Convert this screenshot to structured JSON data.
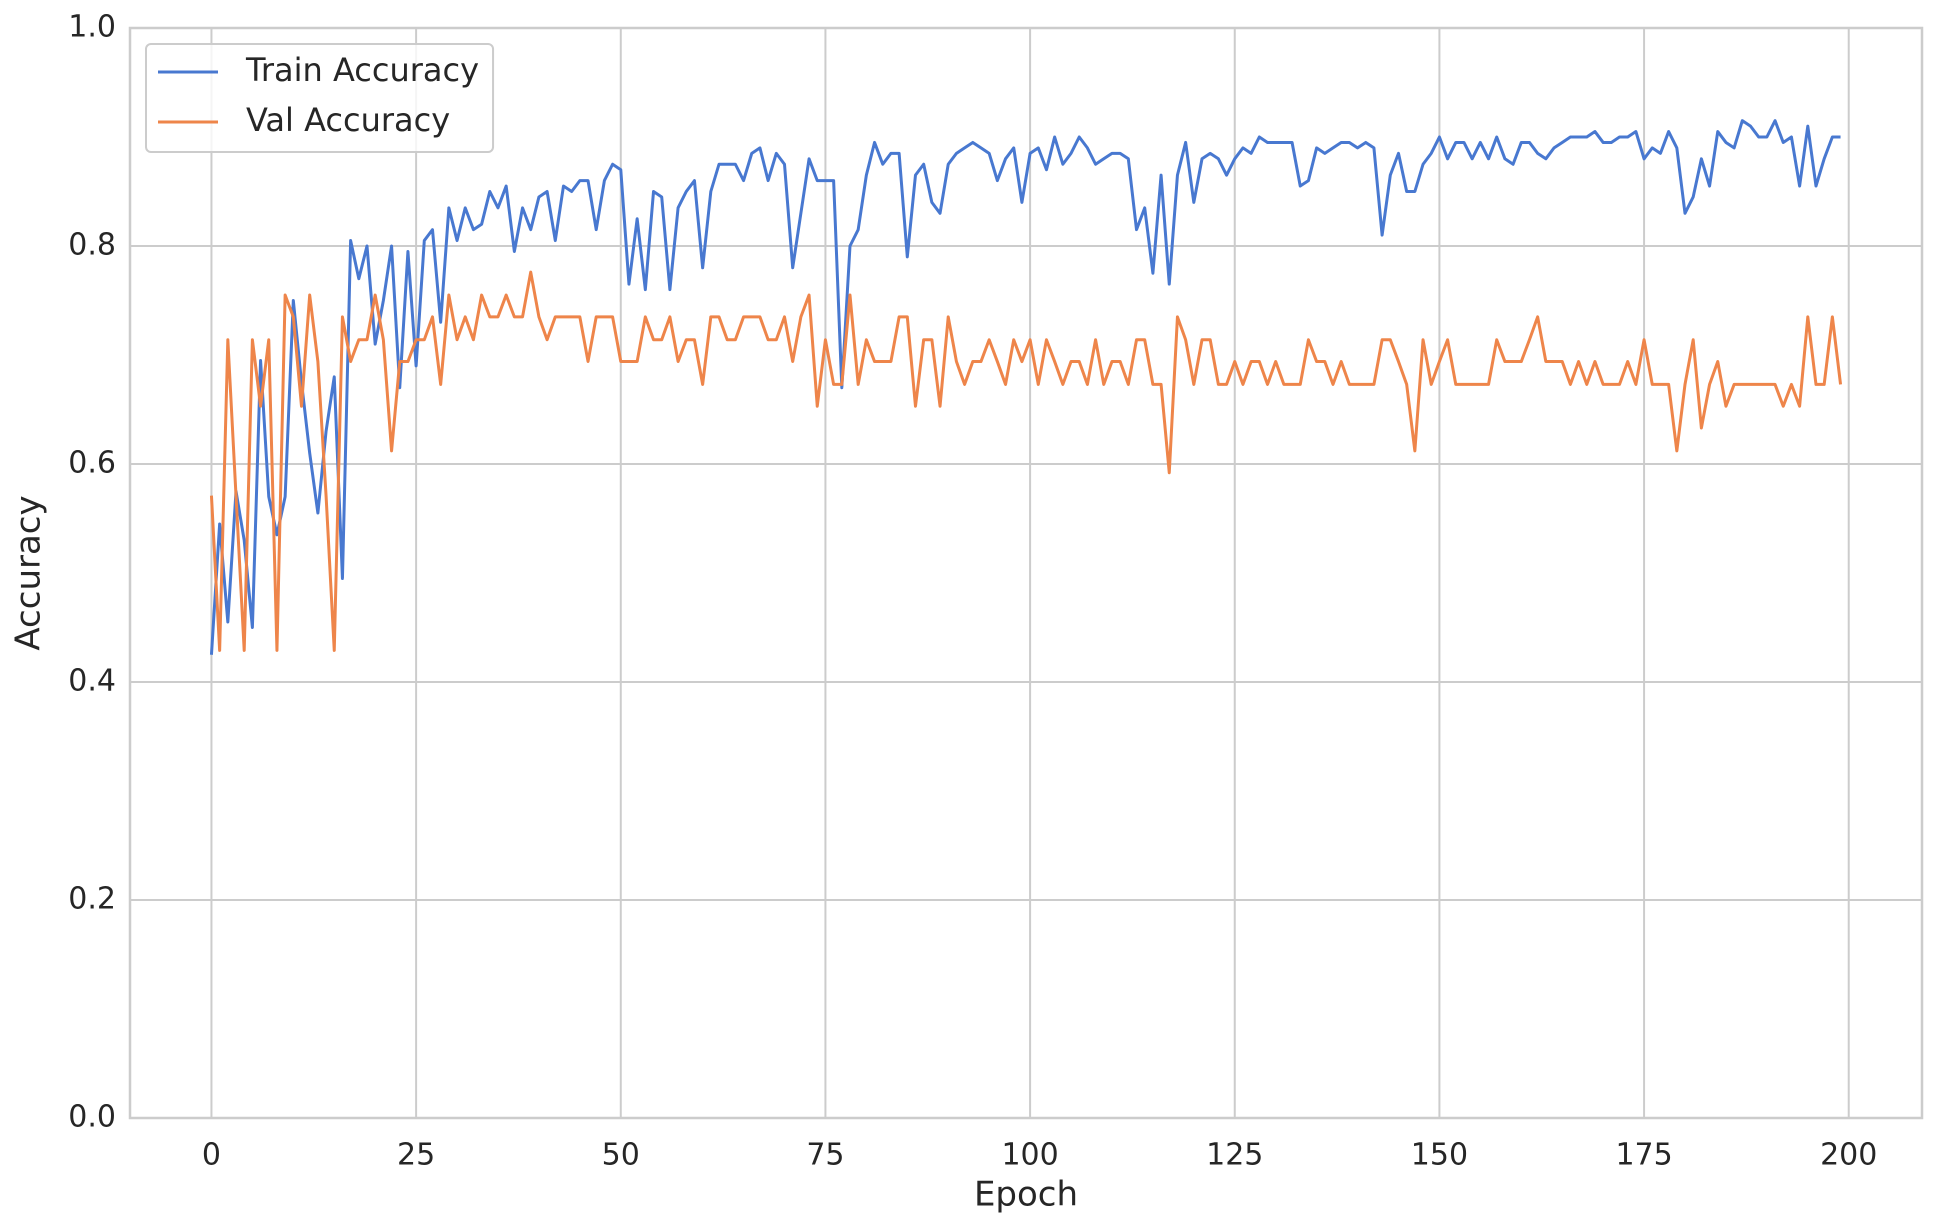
{
  "chart_data": {
    "type": "line",
    "xlabel": "Epoch",
    "ylabel": "Accuracy",
    "x": [
      0,
      1,
      2,
      3,
      4,
      5,
      6,
      7,
      8,
      9,
      10,
      11,
      12,
      13,
      14,
      15,
      16,
      17,
      18,
      19,
      20,
      21,
      22,
      23,
      24,
      25,
      26,
      27,
      28,
      29,
      30,
      31,
      32,
      33,
      34,
      35,
      36,
      37,
      38,
      39,
      40,
      41,
      42,
      43,
      44,
      45,
      46,
      47,
      48,
      49,
      50,
      51,
      52,
      53,
      54,
      55,
      56,
      57,
      58,
      59,
      60,
      61,
      62,
      63,
      64,
      65,
      66,
      67,
      68,
      69,
      70,
      71,
      72,
      73,
      74,
      75,
      76,
      77,
      78,
      79,
      80,
      81,
      82,
      83,
      84,
      85,
      86,
      87,
      88,
      89,
      90,
      91,
      92,
      93,
      94,
      95,
      96,
      97,
      98,
      99,
      100,
      101,
      102,
      103,
      104,
      105,
      106,
      107,
      108,
      109,
      110,
      111,
      112,
      113,
      114,
      115,
      116,
      117,
      118,
      119,
      120,
      121,
      122,
      123,
      124,
      125,
      126,
      127,
      128,
      129,
      130,
      131,
      132,
      133,
      134,
      135,
      136,
      137,
      138,
      139,
      140,
      141,
      142,
      143,
      144,
      145,
      146,
      147,
      148,
      149,
      150,
      151,
      152,
      153,
      154,
      155,
      156,
      157,
      158,
      159,
      160,
      161,
      162,
      163,
      164,
      165,
      166,
      167,
      168,
      169,
      170,
      171,
      172,
      173,
      174,
      175,
      176,
      177,
      178,
      179,
      180,
      181,
      182,
      183,
      184,
      185,
      186,
      187,
      188,
      189,
      190,
      191,
      192,
      193,
      194,
      195,
      196,
      197,
      198,
      199
    ],
    "series": [
      {
        "name": "Train Accuracy",
        "color": "#4878d0",
        "values": [
          0.425,
          0.545,
          0.455,
          0.575,
          0.53,
          0.45,
          0.695,
          0.57,
          0.535,
          0.57,
          0.75,
          0.675,
          0.61,
          0.555,
          0.63,
          0.68,
          0.495,
          0.805,
          0.77,
          0.8,
          0.71,
          0.75,
          0.8,
          0.67,
          0.795,
          0.69,
          0.805,
          0.815,
          0.73,
          0.835,
          0.805,
          0.835,
          0.815,
          0.82,
          0.85,
          0.835,
          0.855,
          0.795,
          0.835,
          0.815,
          0.845,
          0.85,
          0.805,
          0.855,
          0.85,
          0.86,
          0.86,
          0.815,
          0.86,
          0.875,
          0.87,
          0.765,
          0.825,
          0.76,
          0.85,
          0.845,
          0.76,
          0.835,
          0.85,
          0.86,
          0.78,
          0.85,
          0.875,
          0.875,
          0.875,
          0.86,
          0.885,
          0.89,
          0.86,
          0.885,
          0.875,
          0.78,
          0.83,
          0.88,
          0.86,
          0.86,
          0.86,
          0.67,
          0.8,
          0.815,
          0.865,
          0.895,
          0.875,
          0.885,
          0.885,
          0.79,
          0.865,
          0.875,
          0.84,
          0.83,
          0.875,
          0.885,
          0.89,
          0.895,
          0.89,
          0.885,
          0.86,
          0.88,
          0.89,
          0.84,
          0.885,
          0.89,
          0.87,
          0.9,
          0.875,
          0.885,
          0.9,
          0.89,
          0.875,
          0.88,
          0.885,
          0.885,
          0.88,
          0.815,
          0.835,
          0.775,
          0.865,
          0.765,
          0.865,
          0.895,
          0.84,
          0.88,
          0.885,
          0.88,
          0.865,
          0.88,
          0.89,
          0.885,
          0.9,
          0.895,
          0.895,
          0.895,
          0.895,
          0.855,
          0.86,
          0.89,
          0.885,
          0.89,
          0.895,
          0.895,
          0.89,
          0.895,
          0.89,
          0.81,
          0.865,
          0.885,
          0.85,
          0.85,
          0.875,
          0.885,
          0.9,
          0.88,
          0.895,
          0.895,
          0.88,
          0.895,
          0.88,
          0.9,
          0.88,
          0.875,
          0.895,
          0.895,
          0.885,
          0.88,
          0.89,
          0.895,
          0.9,
          0.9,
          0.9,
          0.905,
          0.895,
          0.895,
          0.9,
          0.9,
          0.905,
          0.88,
          0.89,
          0.885,
          0.905,
          0.89,
          0.83,
          0.845,
          0.88,
          0.855,
          0.905,
          0.895,
          0.89,
          0.915,
          0.91,
          0.9,
          0.9,
          0.915,
          0.895,
          0.9,
          0.855,
          0.91,
          0.855,
          0.88,
          0.9,
          0.9
        ]
      },
      {
        "name": "Val Accuracy",
        "color": "#ee854a",
        "values": [
          0.571,
          0.429,
          0.714,
          0.571,
          0.429,
          0.714,
          0.653,
          0.714,
          0.429,
          0.755,
          0.735,
          0.653,
          0.755,
          0.694,
          0.571,
          0.429,
          0.735,
          0.694,
          0.714,
          0.714,
          0.755,
          0.714,
          0.612,
          0.694,
          0.694,
          0.714,
          0.714,
          0.735,
          0.673,
          0.755,
          0.714,
          0.735,
          0.714,
          0.755,
          0.735,
          0.735,
          0.755,
          0.735,
          0.735,
          0.776,
          0.735,
          0.714,
          0.735,
          0.735,
          0.735,
          0.735,
          0.694,
          0.735,
          0.735,
          0.735,
          0.694,
          0.694,
          0.694,
          0.735,
          0.714,
          0.714,
          0.735,
          0.694,
          0.714,
          0.714,
          0.673,
          0.735,
          0.735,
          0.714,
          0.714,
          0.735,
          0.735,
          0.735,
          0.714,
          0.714,
          0.735,
          0.694,
          0.735,
          0.755,
          0.653,
          0.714,
          0.673,
          0.673,
          0.755,
          0.673,
          0.714,
          0.694,
          0.694,
          0.694,
          0.735,
          0.735,
          0.653,
          0.714,
          0.714,
          0.653,
          0.735,
          0.694,
          0.673,
          0.694,
          0.694,
          0.714,
          0.694,
          0.673,
          0.714,
          0.694,
          0.714,
          0.673,
          0.714,
          0.694,
          0.673,
          0.694,
          0.694,
          0.673,
          0.714,
          0.673,
          0.694,
          0.694,
          0.673,
          0.714,
          0.714,
          0.673,
          0.673,
          0.592,
          0.735,
          0.714,
          0.673,
          0.714,
          0.714,
          0.673,
          0.673,
          0.694,
          0.673,
          0.694,
          0.694,
          0.673,
          0.694,
          0.673,
          0.673,
          0.673,
          0.714,
          0.694,
          0.694,
          0.673,
          0.694,
          0.673,
          0.673,
          0.673,
          0.673,
          0.714,
          0.714,
          0.694,
          0.673,
          0.612,
          0.714,
          0.673,
          0.694,
          0.714,
          0.673,
          0.673,
          0.673,
          0.673,
          0.673,
          0.714,
          0.694,
          0.694,
          0.694,
          0.714,
          0.735,
          0.694,
          0.694,
          0.694,
          0.673,
          0.694,
          0.673,
          0.694,
          0.673,
          0.673,
          0.673,
          0.694,
          0.673,
          0.714,
          0.673,
          0.673,
          0.673,
          0.612,
          0.673,
          0.714,
          0.633,
          0.673,
          0.694,
          0.653,
          0.673,
          0.673,
          0.673,
          0.673,
          0.673,
          0.673,
          0.653,
          0.673,
          0.653,
          0.735,
          0.673,
          0.673,
          0.735,
          0.673
        ]
      }
    ],
    "xlim": [
      -9.95,
      208.95
    ],
    "ylim": [
      0,
      1
    ],
    "xticks": [
      0,
      25,
      50,
      75,
      100,
      125,
      150,
      175,
      200
    ],
    "yticks": [
      {
        "value": 0,
        "label": "0.0"
      },
      0.2,
      0.4,
      0.6,
      0.8,
      {
        "value": 1,
        "label": "1.0"
      }
    ],
    "grid": true,
    "legend": "upper left"
  }
}
